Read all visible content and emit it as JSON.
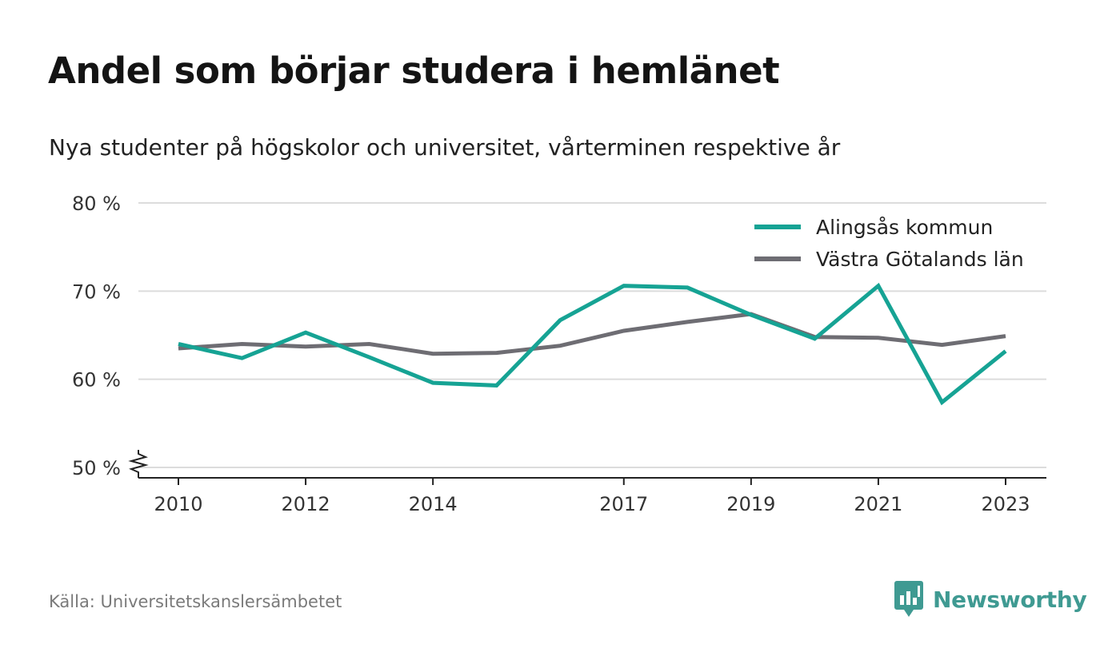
{
  "title": "Andel som börjar studera i hemlänet",
  "subtitle": "Nya studenter på högskolor och universitet, vårterminen respektive år",
  "source": "Källa: Universitetskanslersämbetet",
  "brand": {
    "name": "Newsworthy",
    "icon": "newsworthy-logo-icon",
    "color": "#3f9a92"
  },
  "chart_data": {
    "type": "line",
    "x": [
      2010,
      2011,
      2012,
      2013,
      2014,
      2015,
      2016,
      2017,
      2018,
      2019,
      2020,
      2021,
      2022,
      2023
    ],
    "x_tick_values": [
      2010,
      2012,
      2014,
      2017,
      2019,
      2021,
      2023
    ],
    "x_tick_labels": [
      "2010",
      "2012",
      "2014",
      "2017",
      "2019",
      "2021",
      "2023"
    ],
    "ylim": [
      50,
      80
    ],
    "y_ticks": [
      50,
      60,
      70,
      80
    ],
    "y_tick_labels": [
      "50 %",
      "60 %",
      "70 %",
      "80 %"
    ],
    "y_axis_break": true,
    "grid": "horizontal",
    "legend_position": "top-right",
    "series": [
      {
        "name": "Alingsås kommun",
        "color": "#16a394",
        "values": [
          64.0,
          62.4,
          65.3,
          62.5,
          59.6,
          59.3,
          66.7,
          70.6,
          70.4,
          67.3,
          64.6,
          70.6,
          57.4,
          63.2
        ]
      },
      {
        "name": "Västra Götalands län",
        "color": "#6e6d73",
        "values": [
          63.5,
          64.0,
          63.7,
          64.0,
          62.9,
          63.0,
          63.8,
          65.5,
          66.5,
          67.4,
          64.8,
          64.7,
          63.9,
          64.9
        ]
      }
    ]
  }
}
